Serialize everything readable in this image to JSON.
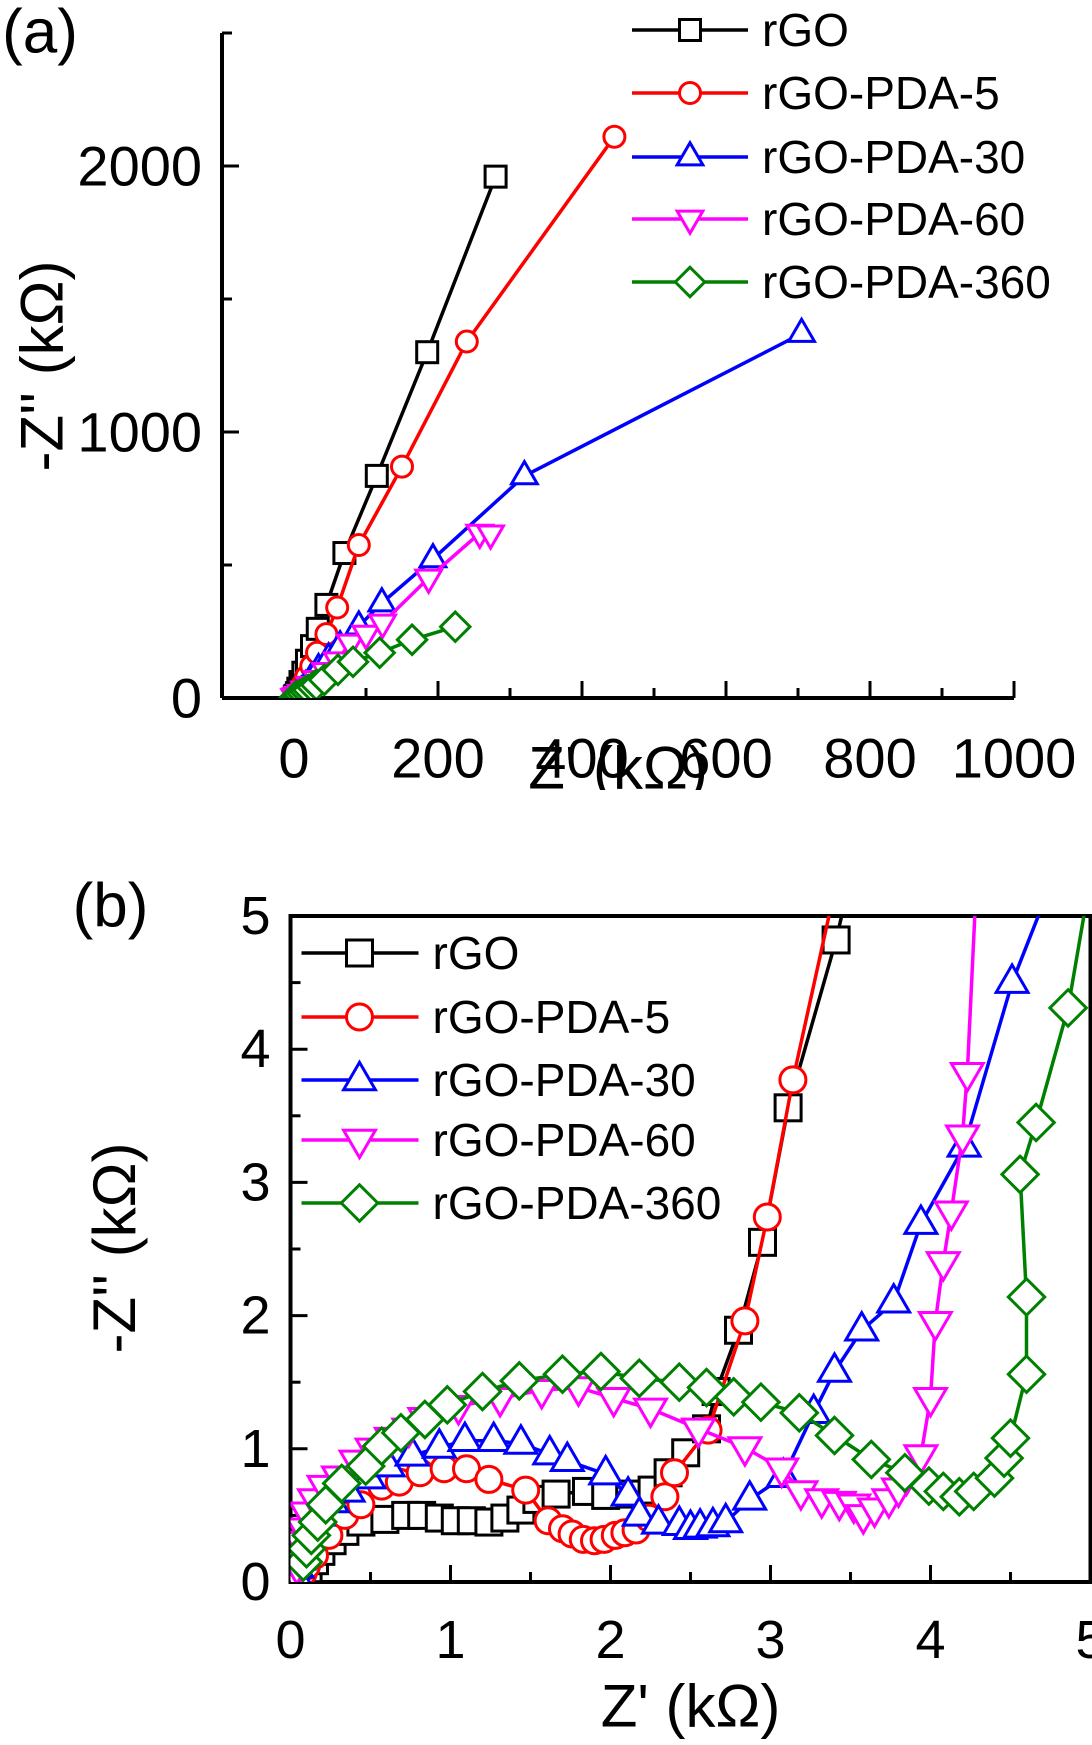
{
  "figure": {
    "background": "#ffffff",
    "panel_labels": [
      "(a)",
      "(b)"
    ]
  },
  "colors": {
    "rGO": "#000000",
    "rGO-PDA-5": "#ff0000",
    "rGO-PDA-30": "#0000ff",
    "rGO-PDA-60": "#ff00ff",
    "rGO-PDA-360": "#008000"
  },
  "chart_data": [
    {
      "id": "a",
      "type": "line",
      "panel_label": "(a)",
      "xlabel": "Z' (kΩ)",
      "ylabel": "-Z'' (kΩ)",
      "xlim": [
        -100,
        1000
      ],
      "ylim": [
        0,
        2500
      ],
      "x_major_ticks": [
        0,
        200,
        400,
        600,
        800,
        1000
      ],
      "x_minor_ticks": [
        100,
        300,
        500,
        700,
        900
      ],
      "y_major_ticks": [
        0,
        1000,
        2000
      ],
      "y_minor_ticks": [
        500,
        1500,
        2500
      ],
      "frame": "open",
      "legend_position": "top-right",
      "grid": false,
      "series": [
        {
          "name": "rGO",
          "color": "#000000",
          "marker": "square",
          "points": [
            [
              1,
              3
            ],
            [
              2,
              8
            ],
            [
              4,
              18
            ],
            [
              6,
              35
            ],
            [
              9,
              60
            ],
            [
              13,
              95
            ],
            [
              18,
              140
            ],
            [
              25,
              195
            ],
            [
              33,
              260
            ],
            [
              45,
              350
            ],
            [
              70,
              545
            ],
            [
              115,
              835
            ],
            [
              185,
              1300
            ],
            [
              280,
              1960
            ]
          ]
        },
        {
          "name": "rGO-PDA-5",
          "color": "#ff0000",
          "marker": "circle",
          "points": [
            [
              1,
              2
            ],
            [
              3,
              7
            ],
            [
              5,
              15
            ],
            [
              8,
              30
            ],
            [
              12,
              50
            ],
            [
              17,
              80
            ],
            [
              24,
              120
            ],
            [
              32,
              170
            ],
            [
              45,
              240
            ],
            [
              60,
              340
            ],
            [
              90,
              575
            ],
            [
              150,
              870
            ],
            [
              240,
              1340
            ],
            [
              445,
              2110
            ]
          ]
        },
        {
          "name": "rGO-PDA-30",
          "color": "#0000ff",
          "marker": "triangle-up",
          "points": [
            [
              1,
              2
            ],
            [
              3,
              6
            ],
            [
              6,
              12
            ],
            [
              10,
              25
            ],
            [
              16,
              45
            ],
            [
              24,
              75
            ],
            [
              34,
              110
            ],
            [
              48,
              150
            ],
            [
              64,
              196
            ],
            [
              90,
              270
            ],
            [
              122,
              357
            ],
            [
              193,
              523
            ],
            [
              320,
              835
            ],
            [
              705,
              1370
            ]
          ]
        },
        {
          "name": "rGO-PDA-60",
          "color": "#ff00ff",
          "marker": "triangle-down",
          "points": [
            [
              1,
              2
            ],
            [
              3,
              5
            ],
            [
              6,
              10
            ],
            [
              10,
              18
            ],
            [
              15,
              30
            ],
            [
              22,
              48
            ],
            [
              32,
              70
            ],
            [
              44,
              100
            ],
            [
              60,
              140
            ],
            [
              78,
              207
            ],
            [
              100,
              240
            ],
            [
              123,
              282
            ],
            [
              187,
              451
            ],
            [
              258,
              620
            ],
            [
              273,
              617
            ]
          ]
        },
        {
          "name": "rGO-PDA-360",
          "color": "#008000",
          "marker": "diamond",
          "points": [
            [
              1,
              1
            ],
            [
              3,
              4
            ],
            [
              5,
              7
            ],
            [
              8,
              11
            ],
            [
              12,
              17
            ],
            [
              16,
              24
            ],
            [
              20,
              30
            ],
            [
              26,
              40
            ],
            [
              31,
              49
            ],
            [
              42,
              68
            ],
            [
              61,
              106
            ],
            [
              82,
              136
            ],
            [
              119,
              170
            ],
            [
              164,
              219
            ],
            [
              224,
              268
            ]
          ]
        }
      ]
    },
    {
      "id": "b",
      "type": "line",
      "panel_label": "(b)",
      "xlabel": "Z' (kΩ)",
      "ylabel": "-Z'' (kΩ)",
      "xlim": [
        0,
        5
      ],
      "ylim": [
        0,
        5
      ],
      "x_major_ticks": [
        0,
        1,
        2,
        3,
        4,
        5
      ],
      "x_minor_ticks": [
        0.5,
        1.5,
        2.5,
        3.5,
        4.5
      ],
      "y_major_ticks": [
        0,
        1,
        2,
        3,
        4,
        5
      ],
      "y_minor_ticks": [
        0.5,
        1.5,
        2.5,
        3.5,
        4.5
      ],
      "frame": "box",
      "legend_position": "top-left",
      "grid": false,
      "series": [
        {
          "name": "rGO",
          "color": "#000000",
          "marker": "square",
          "points": [
            [
              0.05,
              0.02
            ],
            [
              0.08,
              0.06
            ],
            [
              0.11,
              0.1
            ],
            [
              0.15,
              0.16
            ],
            [
              0.19,
              0.23
            ],
            [
              0.26,
              0.31
            ],
            [
              0.34,
              0.38
            ],
            [
              0.44,
              0.45
            ],
            [
              0.59,
              0.47
            ],
            [
              0.72,
              0.5
            ],
            [
              0.82,
              0.5
            ],
            [
              0.93,
              0.48
            ],
            [
              1.03,
              0.46
            ],
            [
              1.13,
              0.46
            ],
            [
              1.24,
              0.45
            ],
            [
              1.34,
              0.48
            ],
            [
              1.44,
              0.54
            ],
            [
              1.54,
              0.62
            ],
            [
              1.66,
              0.66
            ],
            [
              1.85,
              0.68
            ],
            [
              1.97,
              0.65
            ],
            [
              2.12,
              0.66
            ],
            [
              2.26,
              0.69
            ],
            [
              2.36,
              0.82
            ],
            [
              2.47,
              0.97
            ],
            [
              2.6,
              1.15
            ],
            [
              2.66,
              1.43
            ],
            [
              2.8,
              1.89
            ],
            [
              2.95,
              2.55
            ],
            [
              3.11,
              3.56
            ],
            [
              3.41,
              4.82
            ],
            [
              3.46,
              5.08
            ]
          ]
        },
        {
          "name": "rGO-PDA-5",
          "color": "#ff0000",
          "marker": "circle",
          "points": [
            [
              0.06,
              0.03
            ],
            [
              0.08,
              0.07
            ],
            [
              0.1,
              0.12
            ],
            [
              0.15,
              0.2
            ],
            [
              0.24,
              0.35
            ],
            [
              0.34,
              0.5
            ],
            [
              0.44,
              0.58
            ],
            [
              0.57,
              0.72
            ],
            [
              0.68,
              0.75
            ],
            [
              0.81,
              0.82
            ],
            [
              0.96,
              0.85
            ],
            [
              1.1,
              0.85
            ],
            [
              1.24,
              0.77
            ],
            [
              1.47,
              0.69
            ],
            [
              1.61,
              0.46
            ],
            [
              1.7,
              0.4
            ],
            [
              1.76,
              0.36
            ],
            [
              1.83,
              0.32
            ],
            [
              1.9,
              0.31
            ],
            [
              1.96,
              0.32
            ],
            [
              2.03,
              0.35
            ],
            [
              2.09,
              0.37
            ],
            [
              2.16,
              0.39
            ],
            [
              2.24,
              0.48
            ],
            [
              2.34,
              0.64
            ],
            [
              2.4,
              0.82
            ],
            [
              2.61,
              1.14
            ],
            [
              2.84,
              1.96
            ],
            [
              2.98,
              2.74
            ],
            [
              3.14,
              3.77
            ],
            [
              3.38,
              5.08
            ]
          ]
        },
        {
          "name": "rGO-PDA-30",
          "color": "#0000ff",
          "marker": "triangle-up",
          "points": [
            [
              0.03,
              0.05
            ],
            [
              0.04,
              0.11
            ],
            [
              0.05,
              0.17
            ],
            [
              0.05,
              0.23
            ],
            [
              0.06,
              0.29
            ],
            [
              0.09,
              0.35
            ],
            [
              0.12,
              0.42
            ],
            [
              0.17,
              0.5
            ],
            [
              0.26,
              0.6
            ],
            [
              0.36,
              0.68
            ],
            [
              0.49,
              0.78
            ],
            [
              0.61,
              0.87
            ],
            [
              0.76,
              0.95
            ],
            [
              0.93,
              1.01
            ],
            [
              1.09,
              1.06
            ],
            [
              1.27,
              1.06
            ],
            [
              1.44,
              1.04
            ],
            [
              1.62,
              0.96
            ],
            [
              1.73,
              0.91
            ],
            [
              1.97,
              0.81
            ],
            [
              2.11,
              0.65
            ],
            [
              2.18,
              0.5
            ],
            [
              2.3,
              0.44
            ],
            [
              2.43,
              0.43
            ],
            [
              2.5,
              0.4
            ],
            [
              2.56,
              0.41
            ],
            [
              2.64,
              0.42
            ],
            [
              2.72,
              0.45
            ],
            [
              2.87,
              0.62
            ],
            [
              3.08,
              0.79
            ],
            [
              3.27,
              1.27
            ],
            [
              3.4,
              1.58
            ],
            [
              3.57,
              1.89
            ],
            [
              3.77,
              2.1
            ],
            [
              3.94,
              2.69
            ],
            [
              4.21,
              3.27
            ],
            [
              4.51,
              4.5
            ],
            [
              4.7,
              5.08
            ]
          ]
        },
        {
          "name": "rGO-PDA-60",
          "color": "#ff00ff",
          "marker": "triangle-down",
          "points": [
            [
              0.03,
              0.06
            ],
            [
              0.04,
              0.12
            ],
            [
              0.05,
              0.2
            ],
            [
              0.06,
              0.3
            ],
            [
              0.08,
              0.4
            ],
            [
              0.1,
              0.52
            ],
            [
              0.15,
              0.62
            ],
            [
              0.21,
              0.72
            ],
            [
              0.3,
              0.79
            ],
            [
              0.41,
              0.91
            ],
            [
              0.51,
              1.0
            ],
            [
              0.63,
              1.08
            ],
            [
              0.74,
              1.15
            ],
            [
              0.84,
              1.23
            ],
            [
              1.05,
              1.32
            ],
            [
              1.31,
              1.38
            ],
            [
              1.57,
              1.44
            ],
            [
              1.8,
              1.46
            ],
            [
              2.02,
              1.38
            ],
            [
              2.25,
              1.3
            ],
            [
              2.55,
              1.15
            ],
            [
              2.84,
              1.01
            ],
            [
              3.07,
              0.85
            ],
            [
              3.19,
              0.68
            ],
            [
              3.32,
              0.62
            ],
            [
              3.43,
              0.6
            ],
            [
              3.52,
              0.58
            ],
            [
              3.58,
              0.5
            ],
            [
              3.65,
              0.55
            ],
            [
              3.74,
              0.62
            ],
            [
              3.8,
              0.7
            ],
            [
              3.85,
              0.79
            ],
            [
              3.94,
              0.95
            ],
            [
              4.0,
              1.38
            ],
            [
              4.03,
              1.95
            ],
            [
              4.08,
              2.4
            ],
            [
              4.13,
              2.78
            ],
            [
              4.2,
              3.35
            ],
            [
              4.23,
              3.82
            ],
            [
              4.28,
              5.08
            ]
          ]
        },
        {
          "name": "rGO-PDA-360",
          "color": "#008000",
          "marker": "diamond",
          "points": [
            [
              0.08,
              0.15
            ],
            [
              0.1,
              0.25
            ],
            [
              0.13,
              0.35
            ],
            [
              0.17,
              0.45
            ],
            [
              0.22,
              0.58
            ],
            [
              0.32,
              0.74
            ],
            [
              0.47,
              0.87
            ],
            [
              0.57,
              1.02
            ],
            [
              0.69,
              1.12
            ],
            [
              0.84,
              1.22
            ],
            [
              0.98,
              1.33
            ],
            [
              1.2,
              1.43
            ],
            [
              1.43,
              1.51
            ],
            [
              1.7,
              1.56
            ],
            [
              1.94,
              1.58
            ],
            [
              2.18,
              1.53
            ],
            [
              2.43,
              1.5
            ],
            [
              2.6,
              1.46
            ],
            [
              2.77,
              1.39
            ],
            [
              2.94,
              1.35
            ],
            [
              3.18,
              1.27
            ],
            [
              3.4,
              1.1
            ],
            [
              3.63,
              0.92
            ],
            [
              3.84,
              0.82
            ],
            [
              3.99,
              0.72
            ],
            [
              4.08,
              0.68
            ],
            [
              4.18,
              0.64
            ],
            [
              4.27,
              0.68
            ],
            [
              4.4,
              0.78
            ],
            [
              4.46,
              0.93
            ],
            [
              4.5,
              1.08
            ],
            [
              4.6,
              1.56
            ],
            [
              4.6,
              2.14
            ],
            [
              4.56,
              3.06
            ],
            [
              4.66,
              3.45
            ],
            [
              4.86,
              4.31
            ],
            [
              4.97,
              5.08
            ]
          ]
        }
      ]
    }
  ]
}
